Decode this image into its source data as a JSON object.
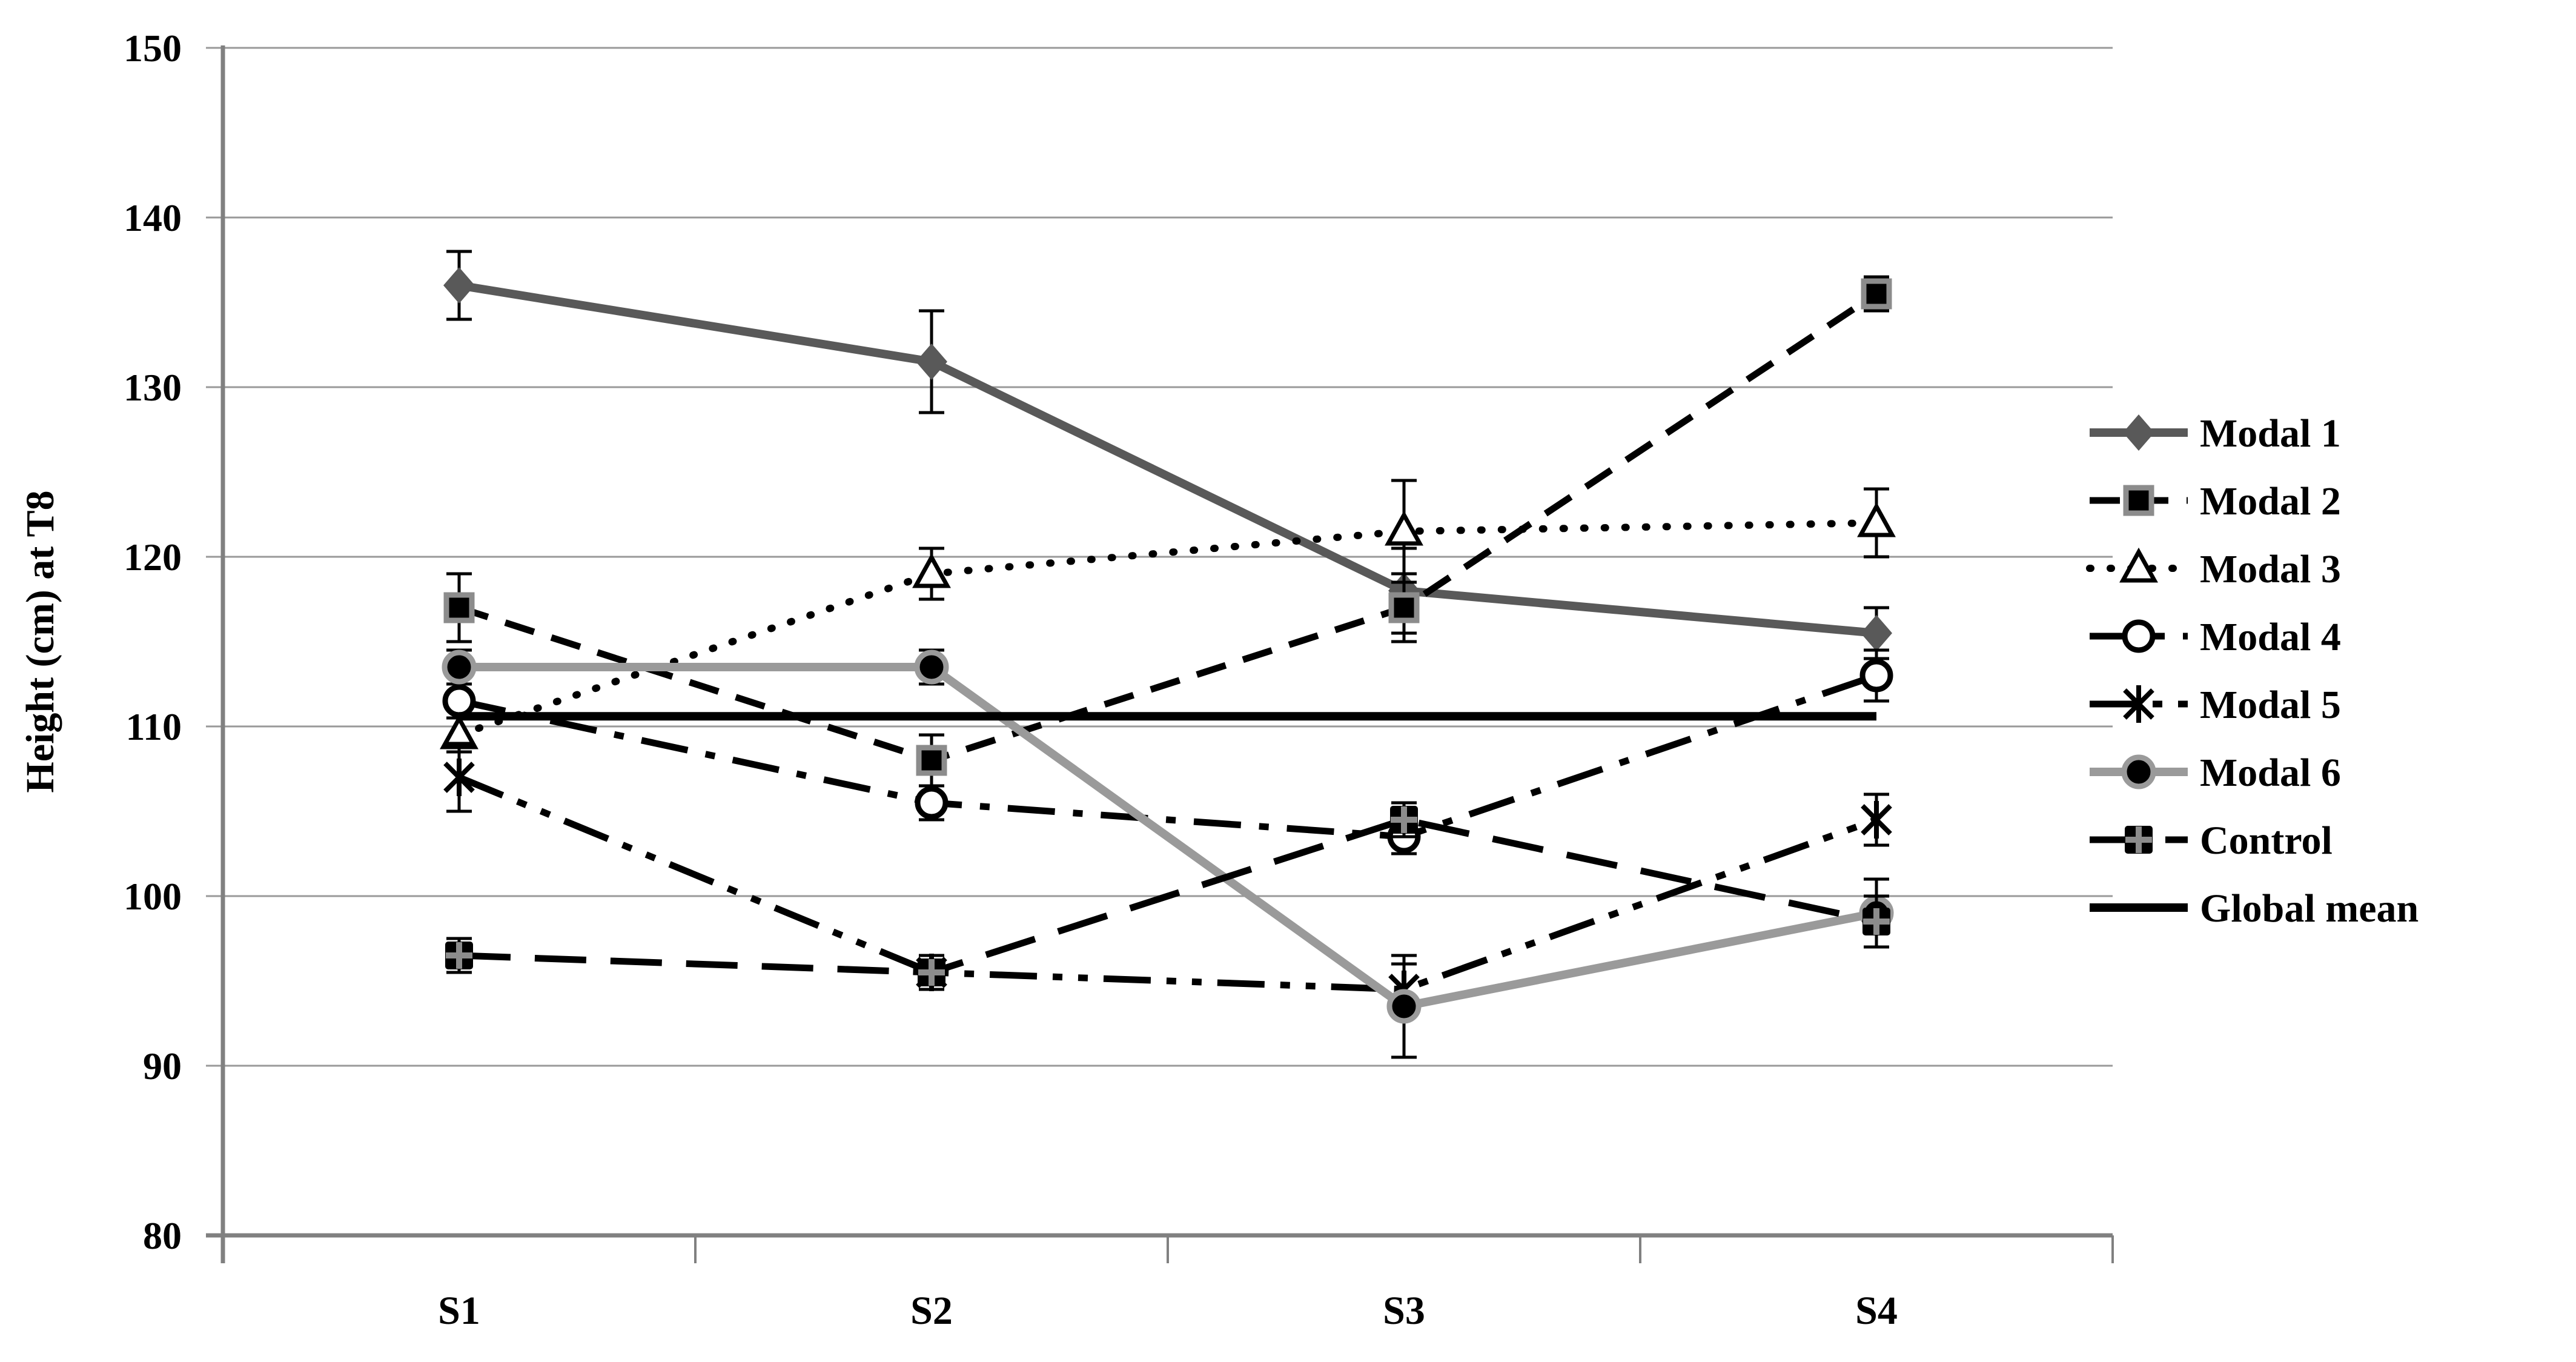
{
  "chart_data": {
    "type": "line",
    "title": "",
    "xlabel": "",
    "ylabel": "Height (cm) at T8",
    "categories": [
      "S1",
      "S2",
      "S3",
      "S4"
    ],
    "ylim": [
      80,
      150
    ],
    "ytick_step": 10,
    "ytick_labels": [
      "80",
      "90",
      "100",
      "110",
      "120",
      "130",
      "140",
      "150"
    ],
    "grid": true,
    "legend_position": "right",
    "error_bars": true,
    "series": [
      {
        "name": "Modal 1",
        "values": [
          136,
          131.5,
          118,
          115.5
        ],
        "errors": [
          2,
          3,
          2.5,
          1.5
        ],
        "color": "#595959",
        "line_style": "solid",
        "marker": "filled-diamond"
      },
      {
        "name": "Modal 2",
        "values": [
          117,
          108,
          117,
          135.5
        ],
        "errors": [
          2,
          1.5,
          2,
          1
        ],
        "color": "#000000",
        "line_style": "dashed",
        "marker": "filled-square"
      },
      {
        "name": "Modal 3",
        "values": [
          109.5,
          119,
          121.5,
          122
        ],
        "errors": [
          1,
          1.5,
          3,
          2
        ],
        "color": "#000000",
        "line_style": "dotted",
        "marker": "open-triangle"
      },
      {
        "name": "Modal 4",
        "values": [
          111.5,
          105.5,
          103.5,
          113
        ],
        "errors": [
          1,
          1,
          1,
          1.5
        ],
        "color": "#000000",
        "line_style": "dash-dot",
        "marker": "open-circle"
      },
      {
        "name": "Modal 5",
        "values": [
          107,
          95.5,
          94.5,
          104.5
        ],
        "errors": [
          2,
          1,
          1.5,
          1.5
        ],
        "color": "#000000",
        "line_style": "dash-dot-dot",
        "marker": "asterisk"
      },
      {
        "name": "Modal 6",
        "values": [
          113.5,
          113.5,
          93.5,
          99
        ],
        "errors": [
          1,
          1,
          3,
          2
        ],
        "color": "#9a9a9a",
        "line_style": "solid",
        "marker": "filled-circle"
      },
      {
        "name": "Control",
        "values": [
          96.5,
          95.5,
          104.5,
          98.5
        ],
        "errors": [
          1,
          1,
          1,
          1.5
        ],
        "color": "#000000",
        "line_style": "long-dash",
        "marker": "square-plus"
      },
      {
        "name": "Global mean",
        "values": [
          110.6,
          110.6,
          110.6,
          110.6
        ],
        "errors": null,
        "color": "#000000",
        "line_style": "solid",
        "marker": "none"
      }
    ],
    "colors": {
      "grid": "#999999",
      "axis": "#808080",
      "error_bar": "#000000",
      "marker_accent": "#8c8c8c",
      "background": "#ffffff",
      "text": "#000000"
    }
  }
}
